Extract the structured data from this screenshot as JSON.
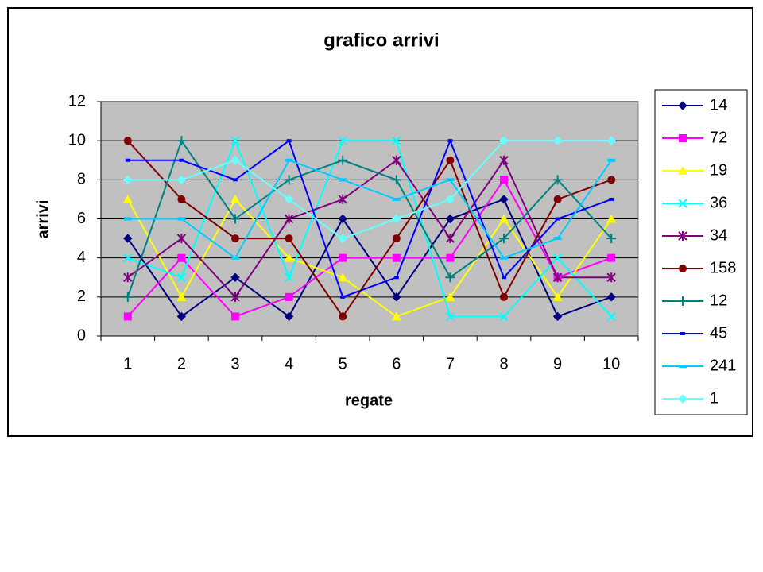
{
  "chart_data": {
    "type": "line",
    "title": "grafico arrivi",
    "xlabel": "regate",
    "ylabel": "arrivi",
    "categories": [
      "1",
      "2",
      "3",
      "4",
      "5",
      "6",
      "7",
      "8",
      "9",
      "10"
    ],
    "ylim": [
      0,
      12
    ],
    "yticks": [
      0,
      2,
      4,
      6,
      8,
      10,
      12
    ],
    "grid": true,
    "legend": "right",
    "plot_background": "#c0c0c0",
    "series": [
      {
        "name": "14",
        "color": "#000080",
        "marker": "diamond",
        "values": [
          5,
          1,
          3,
          1,
          6,
          2,
          6,
          7,
          1,
          2
        ]
      },
      {
        "name": "72",
        "color": "#ff00ff",
        "marker": "square",
        "values": [
          1,
          4,
          1,
          2,
          4,
          4,
          4,
          8,
          3,
          4
        ]
      },
      {
        "name": "19",
        "color": "#ffff00",
        "marker": "triangle",
        "values": [
          7,
          2,
          7,
          4,
          3,
          1,
          2,
          6,
          2,
          6
        ]
      },
      {
        "name": "36",
        "color": "#00ffff",
        "marker": "x",
        "values": [
          4,
          3,
          10,
          3,
          10,
          10,
          1,
          1,
          4,
          1
        ]
      },
      {
        "name": "34",
        "color": "#800080",
        "marker": "star",
        "values": [
          3,
          5,
          2,
          6,
          7,
          9,
          5,
          9,
          3,
          3
        ]
      },
      {
        "name": "158",
        "color": "#800000",
        "marker": "circle",
        "values": [
          10,
          7,
          5,
          5,
          1,
          5,
          9,
          2,
          7,
          8
        ]
      },
      {
        "name": "12",
        "color": "#008080",
        "marker": "plus",
        "values": [
          2,
          10,
          6,
          8,
          9,
          8,
          3,
          5,
          8,
          5
        ]
      },
      {
        "name": "45",
        "color": "#0000ff",
        "marker": "small-square",
        "values": [
          9,
          9,
          8,
          10,
          2,
          3,
          10,
          3,
          6,
          7
        ]
      },
      {
        "name": "241",
        "color": "#00ccff",
        "marker": "dash",
        "values": [
          6,
          6,
          4,
          9,
          8,
          7,
          8,
          4,
          5,
          9
        ]
      },
      {
        "name": "1",
        "color": "#66ffff",
        "marker": "diamond",
        "values": [
          8,
          8,
          9,
          7,
          5,
          6,
          7,
          10,
          10,
          10
        ]
      }
    ]
  }
}
